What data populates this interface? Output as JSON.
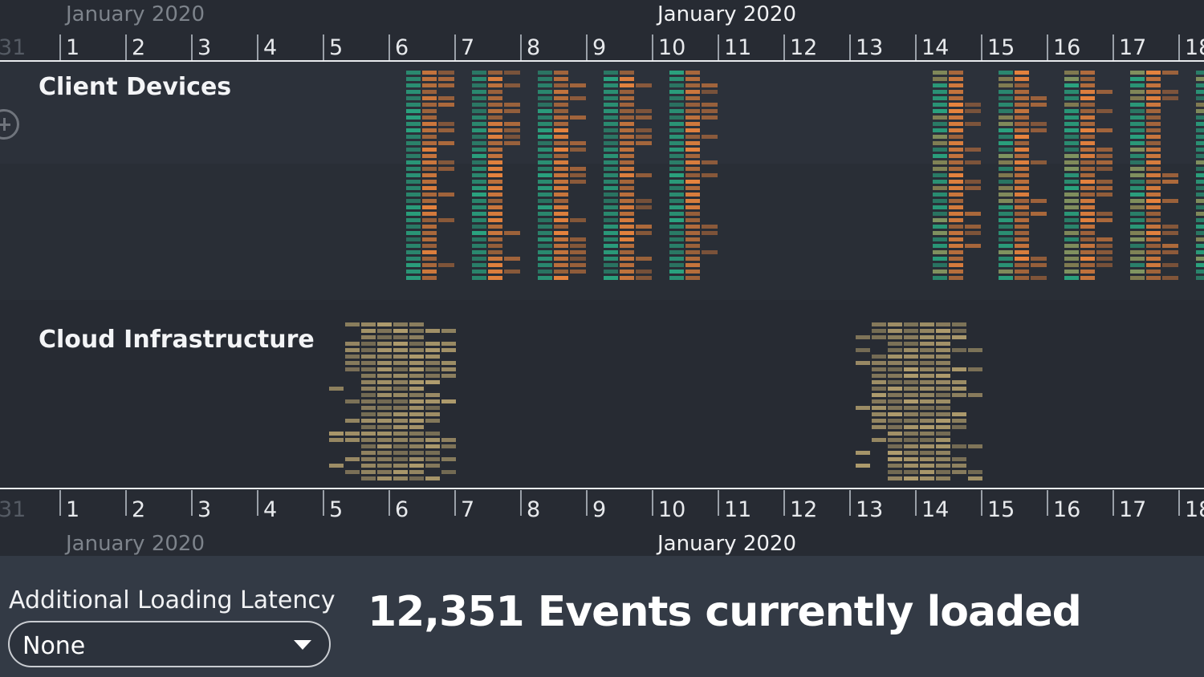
{
  "timeline": {
    "top_axis": {
      "months": [
        {
          "label": "January 2020",
          "style": "dim"
        },
        {
          "label": "January 2020",
          "style": "bright"
        }
      ],
      "days": [
        "31",
        "1",
        "2",
        "3",
        "4",
        "5",
        "6",
        "7",
        "8",
        "9",
        "10",
        "11",
        "12",
        "13",
        "14",
        "15",
        "16",
        "17",
        "18"
      ]
    },
    "bottom_axis": {
      "months": [
        {
          "label": "January 2020",
          "style": "dim"
        },
        {
          "label": "January 2020",
          "style": "bright"
        }
      ],
      "days": [
        "31",
        "1",
        "2",
        "3",
        "4",
        "5",
        "6",
        "7",
        "8",
        "9",
        "10",
        "11",
        "12",
        "13",
        "14",
        "15",
        "16",
        "17",
        "18"
      ]
    },
    "groups": [
      {
        "label": "Client Devices",
        "icon": "add-circle-icon"
      },
      {
        "label": "Cloud Infrastructure"
      }
    ],
    "colors": {
      "background": "#272b33",
      "client_green": "#2aa37f",
      "client_orange": "#e8843e",
      "cloud_tan": "#b09d6e",
      "axis_line": "#e9ebee",
      "controls_bg": "#333a45"
    },
    "client_device_days": [
      6,
      7,
      8,
      9,
      10,
      14,
      15,
      16,
      17,
      18
    ],
    "cloud_infrastructure_days": [
      5,
      6,
      13,
      14
    ]
  },
  "controls": {
    "latency_label": "Additional Loading Latency",
    "latency_value": "None",
    "events_text": "12,351 Events currently loaded"
  }
}
